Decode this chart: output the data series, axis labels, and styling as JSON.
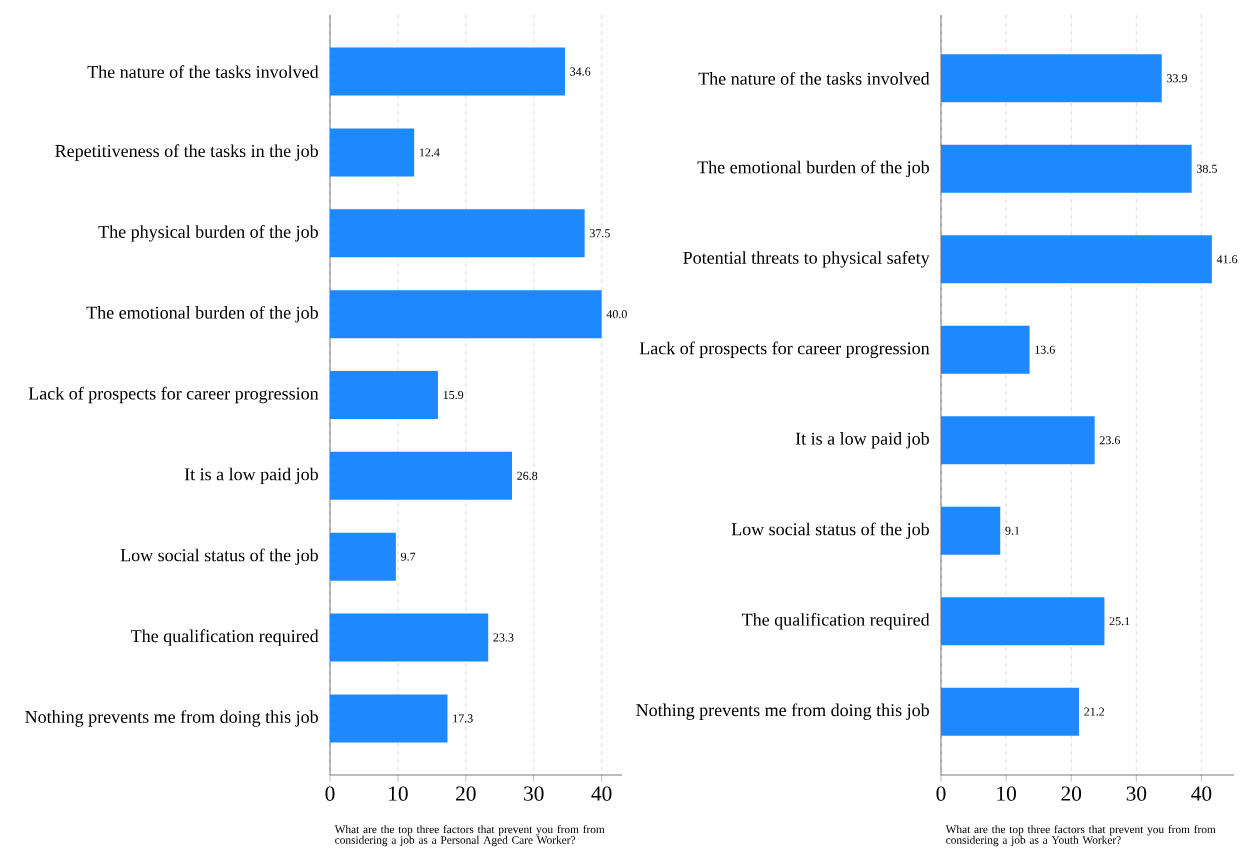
{
  "chart_data": [
    {
      "type": "bar",
      "orientation": "horizontal",
      "categories": [
        "The nature of the tasks involved",
        "Repetitiveness of the tasks in the job",
        "The physical burden of the job",
        "The emotional burden of the job",
        "Lack of prospects for career progression",
        "It is a low paid job",
        "Low social status of the job",
        "The qualification required",
        "Nothing prevents me from doing this job"
      ],
      "values": [
        34.6,
        12.4,
        37.5,
        40.0,
        15.9,
        26.8,
        9.7,
        23.3,
        17.3
      ],
      "value_labels": [
        "34.6",
        "12.4",
        "37.5",
        "40.0",
        "15.9",
        "26.8",
        "9.7",
        "23.3",
        "17.3"
      ],
      "color": "#1e88ff",
      "xlim": [
        0,
        43
      ],
      "xticks": [
        0,
        10,
        20,
        30,
        40
      ],
      "grid": "x",
      "xlabel": "What are the top three factors that prevent you from from considering a job as a Personal Aged Care Worker?"
    },
    {
      "type": "bar",
      "orientation": "horizontal",
      "categories": [
        "The nature of the tasks involved",
        "The emotional burden of the job",
        "Potential threats to physical safety",
        "Lack of prospects for career progression",
        "It is a low paid job",
        "Low social status of the job",
        "The qualification required",
        "Nothing prevents me from doing this job"
      ],
      "values": [
        33.9,
        38.5,
        41.6,
        13.6,
        23.6,
        9.1,
        25.1,
        21.2
      ],
      "value_labels": [
        "33.9",
        "38.5",
        "41.6",
        "13.6",
        "23.6",
        "9.1",
        "25.1",
        "21.2"
      ],
      "color": "#1e88ff",
      "xlim": [
        0,
        45
      ],
      "xticks": [
        0,
        10,
        20,
        30,
        40
      ],
      "grid": "x",
      "xlabel": "What are the top three factors that prevent you from from considering a job as a Youth Worker?"
    }
  ]
}
